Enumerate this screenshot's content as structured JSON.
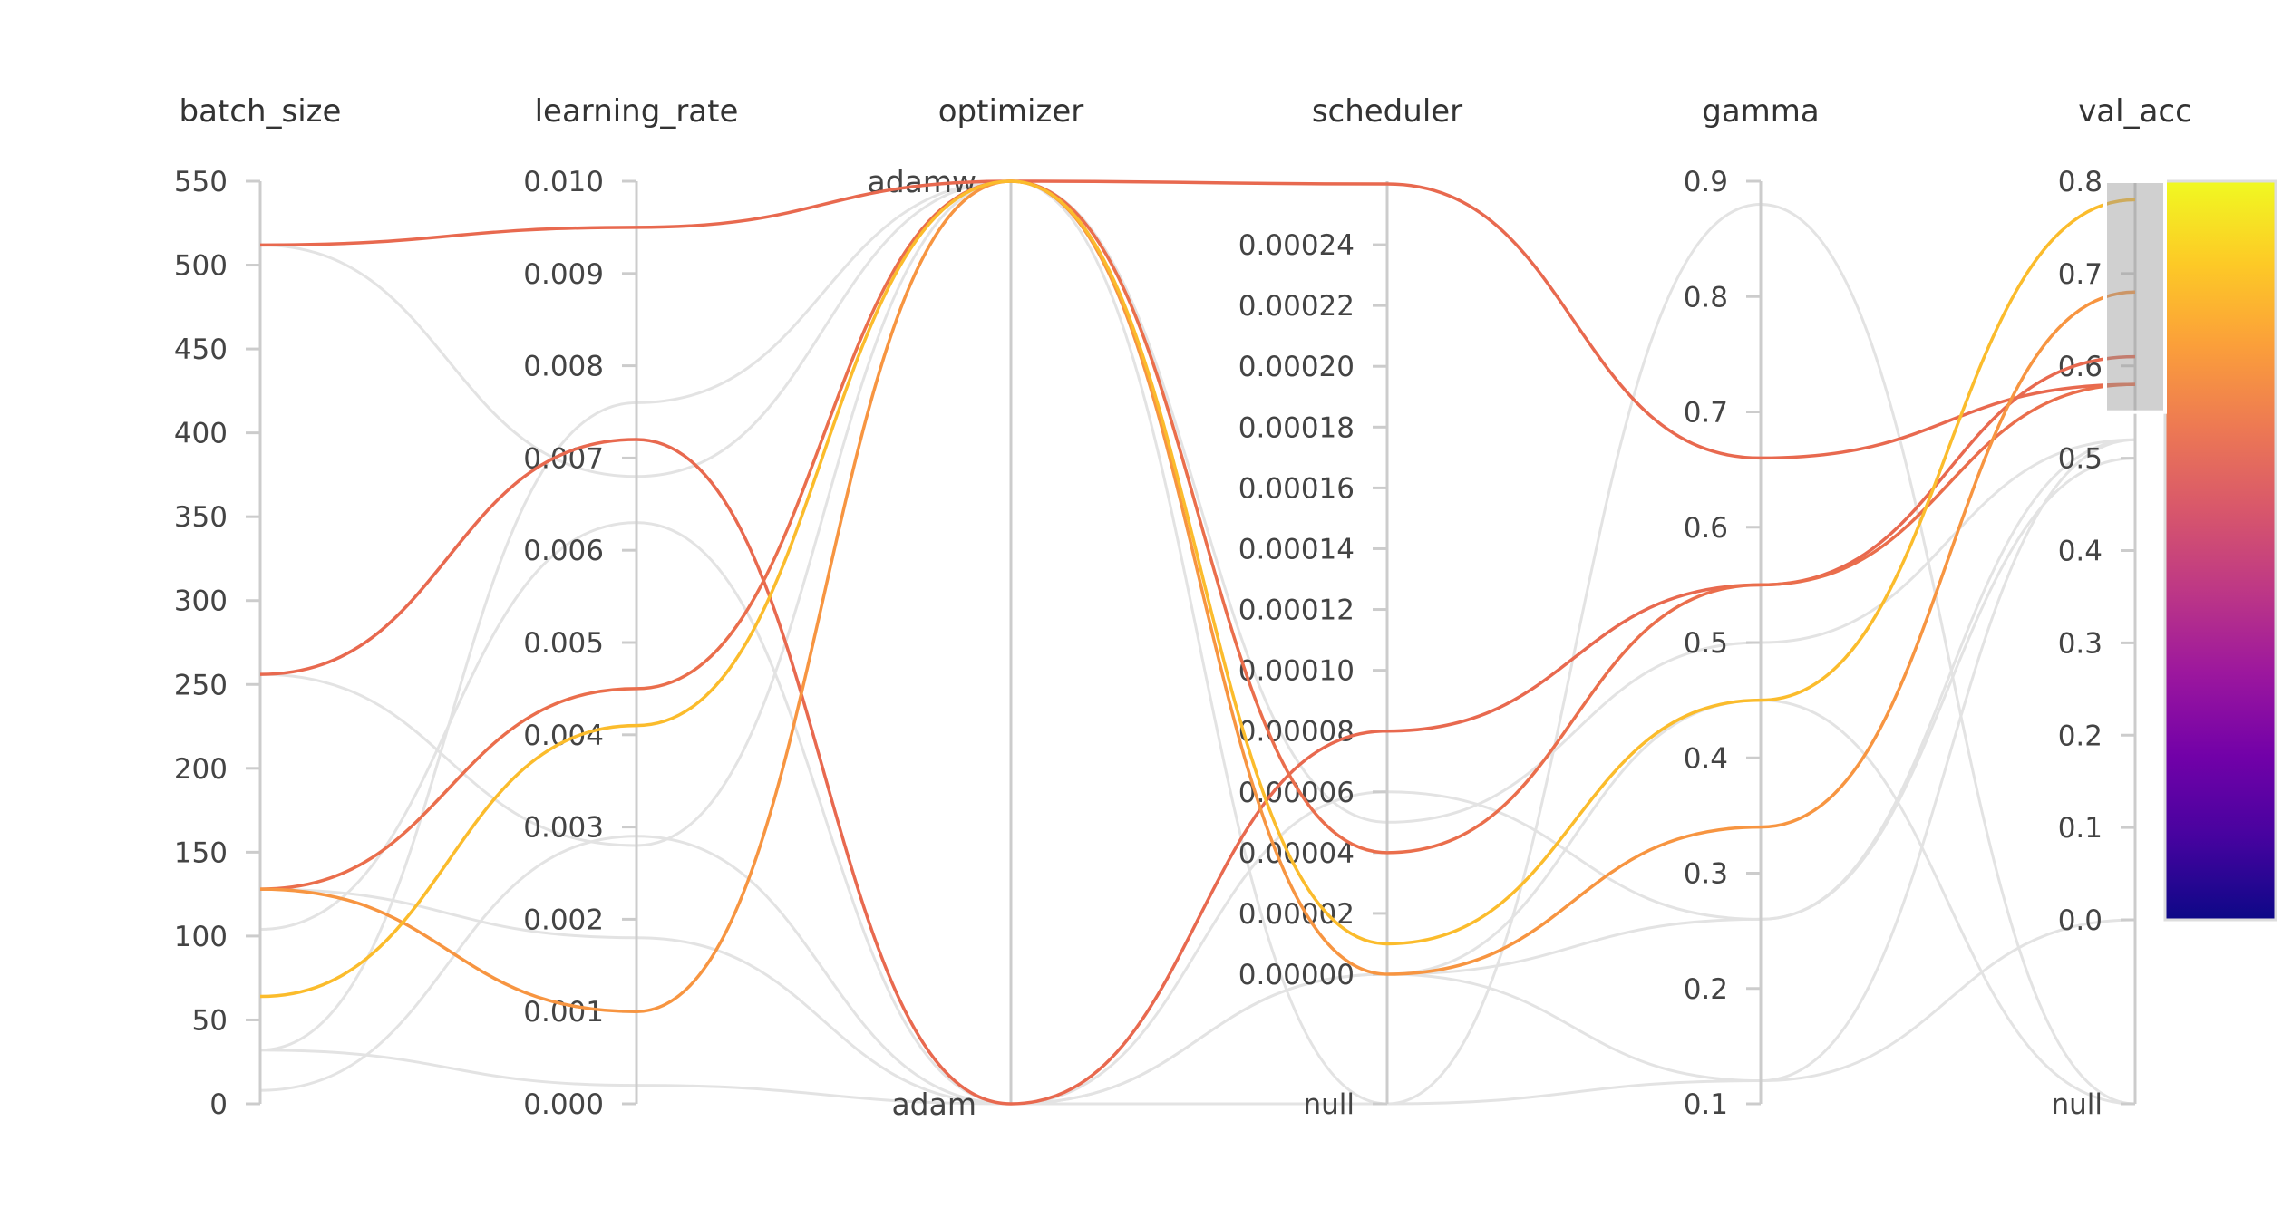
{
  "chart_data": {
    "type": "parallel_coordinates",
    "color_by": "val_acc",
    "axes": [
      {
        "key": "batch_size",
        "label": "batch_size",
        "kind": "numeric",
        "range": [
          0,
          550
        ],
        "ticks": [
          {
            "v": 0,
            "label": "0"
          },
          {
            "v": 50,
            "label": "50"
          },
          {
            "v": 100,
            "label": "100"
          },
          {
            "v": 150,
            "label": "150"
          },
          {
            "v": 200,
            "label": "200"
          },
          {
            "v": 250,
            "label": "250"
          },
          {
            "v": 300,
            "label": "300"
          },
          {
            "v": 350,
            "label": "350"
          },
          {
            "v": 400,
            "label": "400"
          },
          {
            "v": 450,
            "label": "450"
          },
          {
            "v": 500,
            "label": "500"
          },
          {
            "v": 550,
            "label": "550"
          }
        ]
      },
      {
        "key": "learning_rate",
        "label": "learning_rate",
        "kind": "numeric",
        "range": [
          0,
          0.01
        ],
        "ticks": [
          {
            "v": 0,
            "label": "0.000"
          },
          {
            "v": 0.001,
            "label": "0.001"
          },
          {
            "v": 0.002,
            "label": "0.002"
          },
          {
            "v": 0.003,
            "label": "0.003"
          },
          {
            "v": 0.004,
            "label": "0.004"
          },
          {
            "v": 0.005,
            "label": "0.005"
          },
          {
            "v": 0.006,
            "label": "0.006"
          },
          {
            "v": 0.007,
            "label": "0.007"
          },
          {
            "v": 0.008,
            "label": "0.008"
          },
          {
            "v": 0.009,
            "label": "0.009"
          },
          {
            "v": 0.01,
            "label": "0.010"
          }
        ]
      },
      {
        "key": "optimizer",
        "label": "optimizer",
        "kind": "categorical",
        "categories": [
          "adam",
          "adamw"
        ]
      },
      {
        "key": "scheduler",
        "label": "scheduler",
        "kind": "numeric_with_null",
        "range": [
          0,
          0.00026
        ],
        "null_label": "null",
        "ticks": [
          {
            "v": 0,
            "label": "0.00000"
          },
          {
            "v": 2e-05,
            "label": "0.00002"
          },
          {
            "v": 4e-05,
            "label": "0.00004"
          },
          {
            "v": 6e-05,
            "label": "0.00006"
          },
          {
            "v": 8e-05,
            "label": "0.00008"
          },
          {
            "v": 0.0001,
            "label": "0.00010"
          },
          {
            "v": 0.00012,
            "label": "0.00012"
          },
          {
            "v": 0.00014,
            "label": "0.00014"
          },
          {
            "v": 0.00016,
            "label": "0.00016"
          },
          {
            "v": 0.00018,
            "label": "0.00018"
          },
          {
            "v": 0.0002,
            "label": "0.00020"
          },
          {
            "v": 0.00022,
            "label": "0.00022"
          },
          {
            "v": 0.00024,
            "label": "0.00024"
          }
        ]
      },
      {
        "key": "gamma",
        "label": "gamma",
        "kind": "numeric",
        "range": [
          0.1,
          0.9
        ],
        "ticks": [
          {
            "v": 0.1,
            "label": "0.1"
          },
          {
            "v": 0.2,
            "label": "0.2"
          },
          {
            "v": 0.3,
            "label": "0.3"
          },
          {
            "v": 0.4,
            "label": "0.4"
          },
          {
            "v": 0.5,
            "label": "0.5"
          },
          {
            "v": 0.6,
            "label": "0.6"
          },
          {
            "v": 0.7,
            "label": "0.7"
          },
          {
            "v": 0.8,
            "label": "0.8"
          },
          {
            "v": 0.9,
            "label": "0.9"
          }
        ]
      },
      {
        "key": "val_acc",
        "label": "val_acc",
        "kind": "numeric_with_null",
        "range": [
          0,
          0.8
        ],
        "null_label": "null",
        "ticks": [
          {
            "v": 0,
            "label": "0.0"
          },
          {
            "v": 0.1,
            "label": "0.1"
          },
          {
            "v": 0.2,
            "label": "0.2"
          },
          {
            "v": 0.3,
            "label": "0.3"
          },
          {
            "v": 0.4,
            "label": "0.4"
          },
          {
            "v": 0.5,
            "label": "0.5"
          },
          {
            "v": 0.6,
            "label": "0.6"
          },
          {
            "v": 0.7,
            "label": "0.7"
          },
          {
            "v": 0.8,
            "label": "0.8"
          }
        ]
      }
    ],
    "highlight_range": {
      "axis": "val_acc",
      "from": 0.55,
      "to": 0.8
    },
    "colorscale": {
      "min": 0,
      "max": 0.8,
      "stops": [
        "#0d0887",
        "#46039f",
        "#7201a8",
        "#9c179e",
        "#bd3786",
        "#d8576b",
        "#ed7953",
        "#fb9f3a",
        "#fdca26",
        "#f0f921"
      ]
    },
    "highlighted_runs": [
      {
        "batch_size": 512,
        "learning_rate": 0.0095,
        "optimizer": "adamw",
        "scheduler": 0.00026,
        "gamma": 0.66,
        "val_acc": 0.58,
        "color": "#e8694f"
      },
      {
        "batch_size": 256,
        "learning_rate": 0.0072,
        "optimizer": "adam",
        "scheduler": 8e-05,
        "gamma": 0.55,
        "val_acc": 0.61,
        "color": "#e8694f"
      },
      {
        "batch_size": 128,
        "learning_rate": 0.0045,
        "optimizer": "adamw",
        "scheduler": 4e-05,
        "gamma": 0.55,
        "val_acc": 0.58,
        "color": "#ea6e4c"
      },
      {
        "batch_size": 128,
        "learning_rate": 0.001,
        "optimizer": "adamw",
        "scheduler": 0.0,
        "gamma": 0.34,
        "val_acc": 0.68,
        "color": "#f79541"
      },
      {
        "batch_size": 64,
        "learning_rate": 0.0041,
        "optimizer": "adamw",
        "scheduler": 1e-05,
        "gamma": 0.45,
        "val_acc": 0.78,
        "color": "#fbbc2c"
      }
    ],
    "other_runs": [
      {
        "batch_size": 512,
        "learning_rate": 0.0068,
        "optimizer": "adamw",
        "scheduler": 5e-05,
        "gamma": 0.5,
        "val_acc": 0.52
      },
      {
        "batch_size": 256,
        "learning_rate": 0.0028,
        "optimizer": "adamw",
        "scheduler": 0.0,
        "gamma": 0.26,
        "val_acc": 0.5
      },
      {
        "batch_size": 128,
        "learning_rate": 0.0018,
        "optimizer": "adam",
        "scheduler": 0.0,
        "gamma": 0.12,
        "val_acc": 0.0
      },
      {
        "batch_size": 104,
        "learning_rate": 0.0063,
        "optimizer": "adam",
        "scheduler": 6e-05,
        "gamma": 0.26,
        "val_acc": 0.52
      },
      {
        "batch_size": 32,
        "learning_rate": 0.0076,
        "optimizer": "adamw",
        "scheduler": "null",
        "gamma": 0.88,
        "val_acc": "null"
      },
      {
        "batch_size": 32,
        "learning_rate": 0.0002,
        "optimizer": "adam",
        "scheduler": 0.0,
        "gamma": 0.45,
        "val_acc": "null"
      },
      {
        "batch_size": 8,
        "learning_rate": 0.0029,
        "optimizer": "adam",
        "scheduler": "null",
        "gamma": 0.12,
        "val_acc": 0.52
      }
    ]
  }
}
